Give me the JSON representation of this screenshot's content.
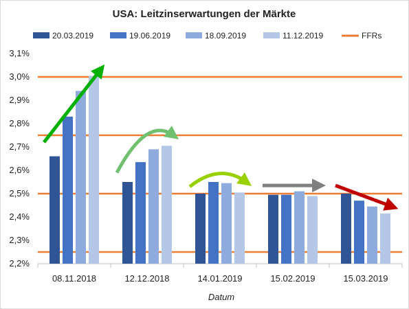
{
  "chart_data": {
    "type": "bar",
    "title": "USA: Leitzinserwartungen der Märkte",
    "xlabel": "Datum",
    "ylabel": "",
    "ylim": [
      2.2,
      3.1
    ],
    "yticks": [
      "2,2%",
      "2,3%",
      "2,4%",
      "2,5%",
      "2,6%",
      "2,7%",
      "2,8%",
      "2,9%",
      "3,0%",
      "3,1%"
    ],
    "ytick_values": [
      2.2,
      2.3,
      2.4,
      2.5,
      2.6,
      2.7,
      2.8,
      2.9,
      3.0,
      3.1
    ],
    "categories": [
      "08.11.2018",
      "12.12.2018",
      "14.01.2019",
      "15.02.2019",
      "15.03.2019"
    ],
    "series": [
      {
        "name": "20.03.2019",
        "color": "#2f5597",
        "values": [
          2.66,
          2.55,
          2.5,
          2.495,
          2.5
        ]
      },
      {
        "name": "19.06.2019",
        "color": "#4472c4",
        "values": [
          2.83,
          2.635,
          2.55,
          2.495,
          2.47
        ]
      },
      {
        "name": "18.09.2019",
        "color": "#8faadc",
        "values": [
          2.94,
          2.69,
          2.545,
          2.51,
          2.445
        ]
      },
      {
        "name": "11.12.2019",
        "color": "#b4c7e7",
        "values": [
          3.005,
          2.705,
          2.505,
          2.49,
          2.415
        ]
      }
    ],
    "reference_lines": {
      "name": "FFRs",
      "color": "#ed7d31",
      "values": [
        2.25,
        2.5,
        2.75,
        3.0
      ]
    },
    "arrows": [
      {
        "category": 0,
        "from": 2.72,
        "to": 3.03,
        "color": "#00b000",
        "style": "straight"
      },
      {
        "category": 1,
        "from": 2.59,
        "to": 2.75,
        "color": "#70c070",
        "style": "curve"
      },
      {
        "category": 2,
        "from": 2.53,
        "to": 2.55,
        "color": "#99d000",
        "style": "curve"
      },
      {
        "category": 3,
        "from": 2.535,
        "to": 2.535,
        "color": "#808080",
        "style": "straight"
      },
      {
        "category": 4,
        "from": 2.535,
        "to": 2.445,
        "color": "#c00000",
        "style": "straight"
      }
    ],
    "grid": false,
    "legend_position": "top"
  }
}
